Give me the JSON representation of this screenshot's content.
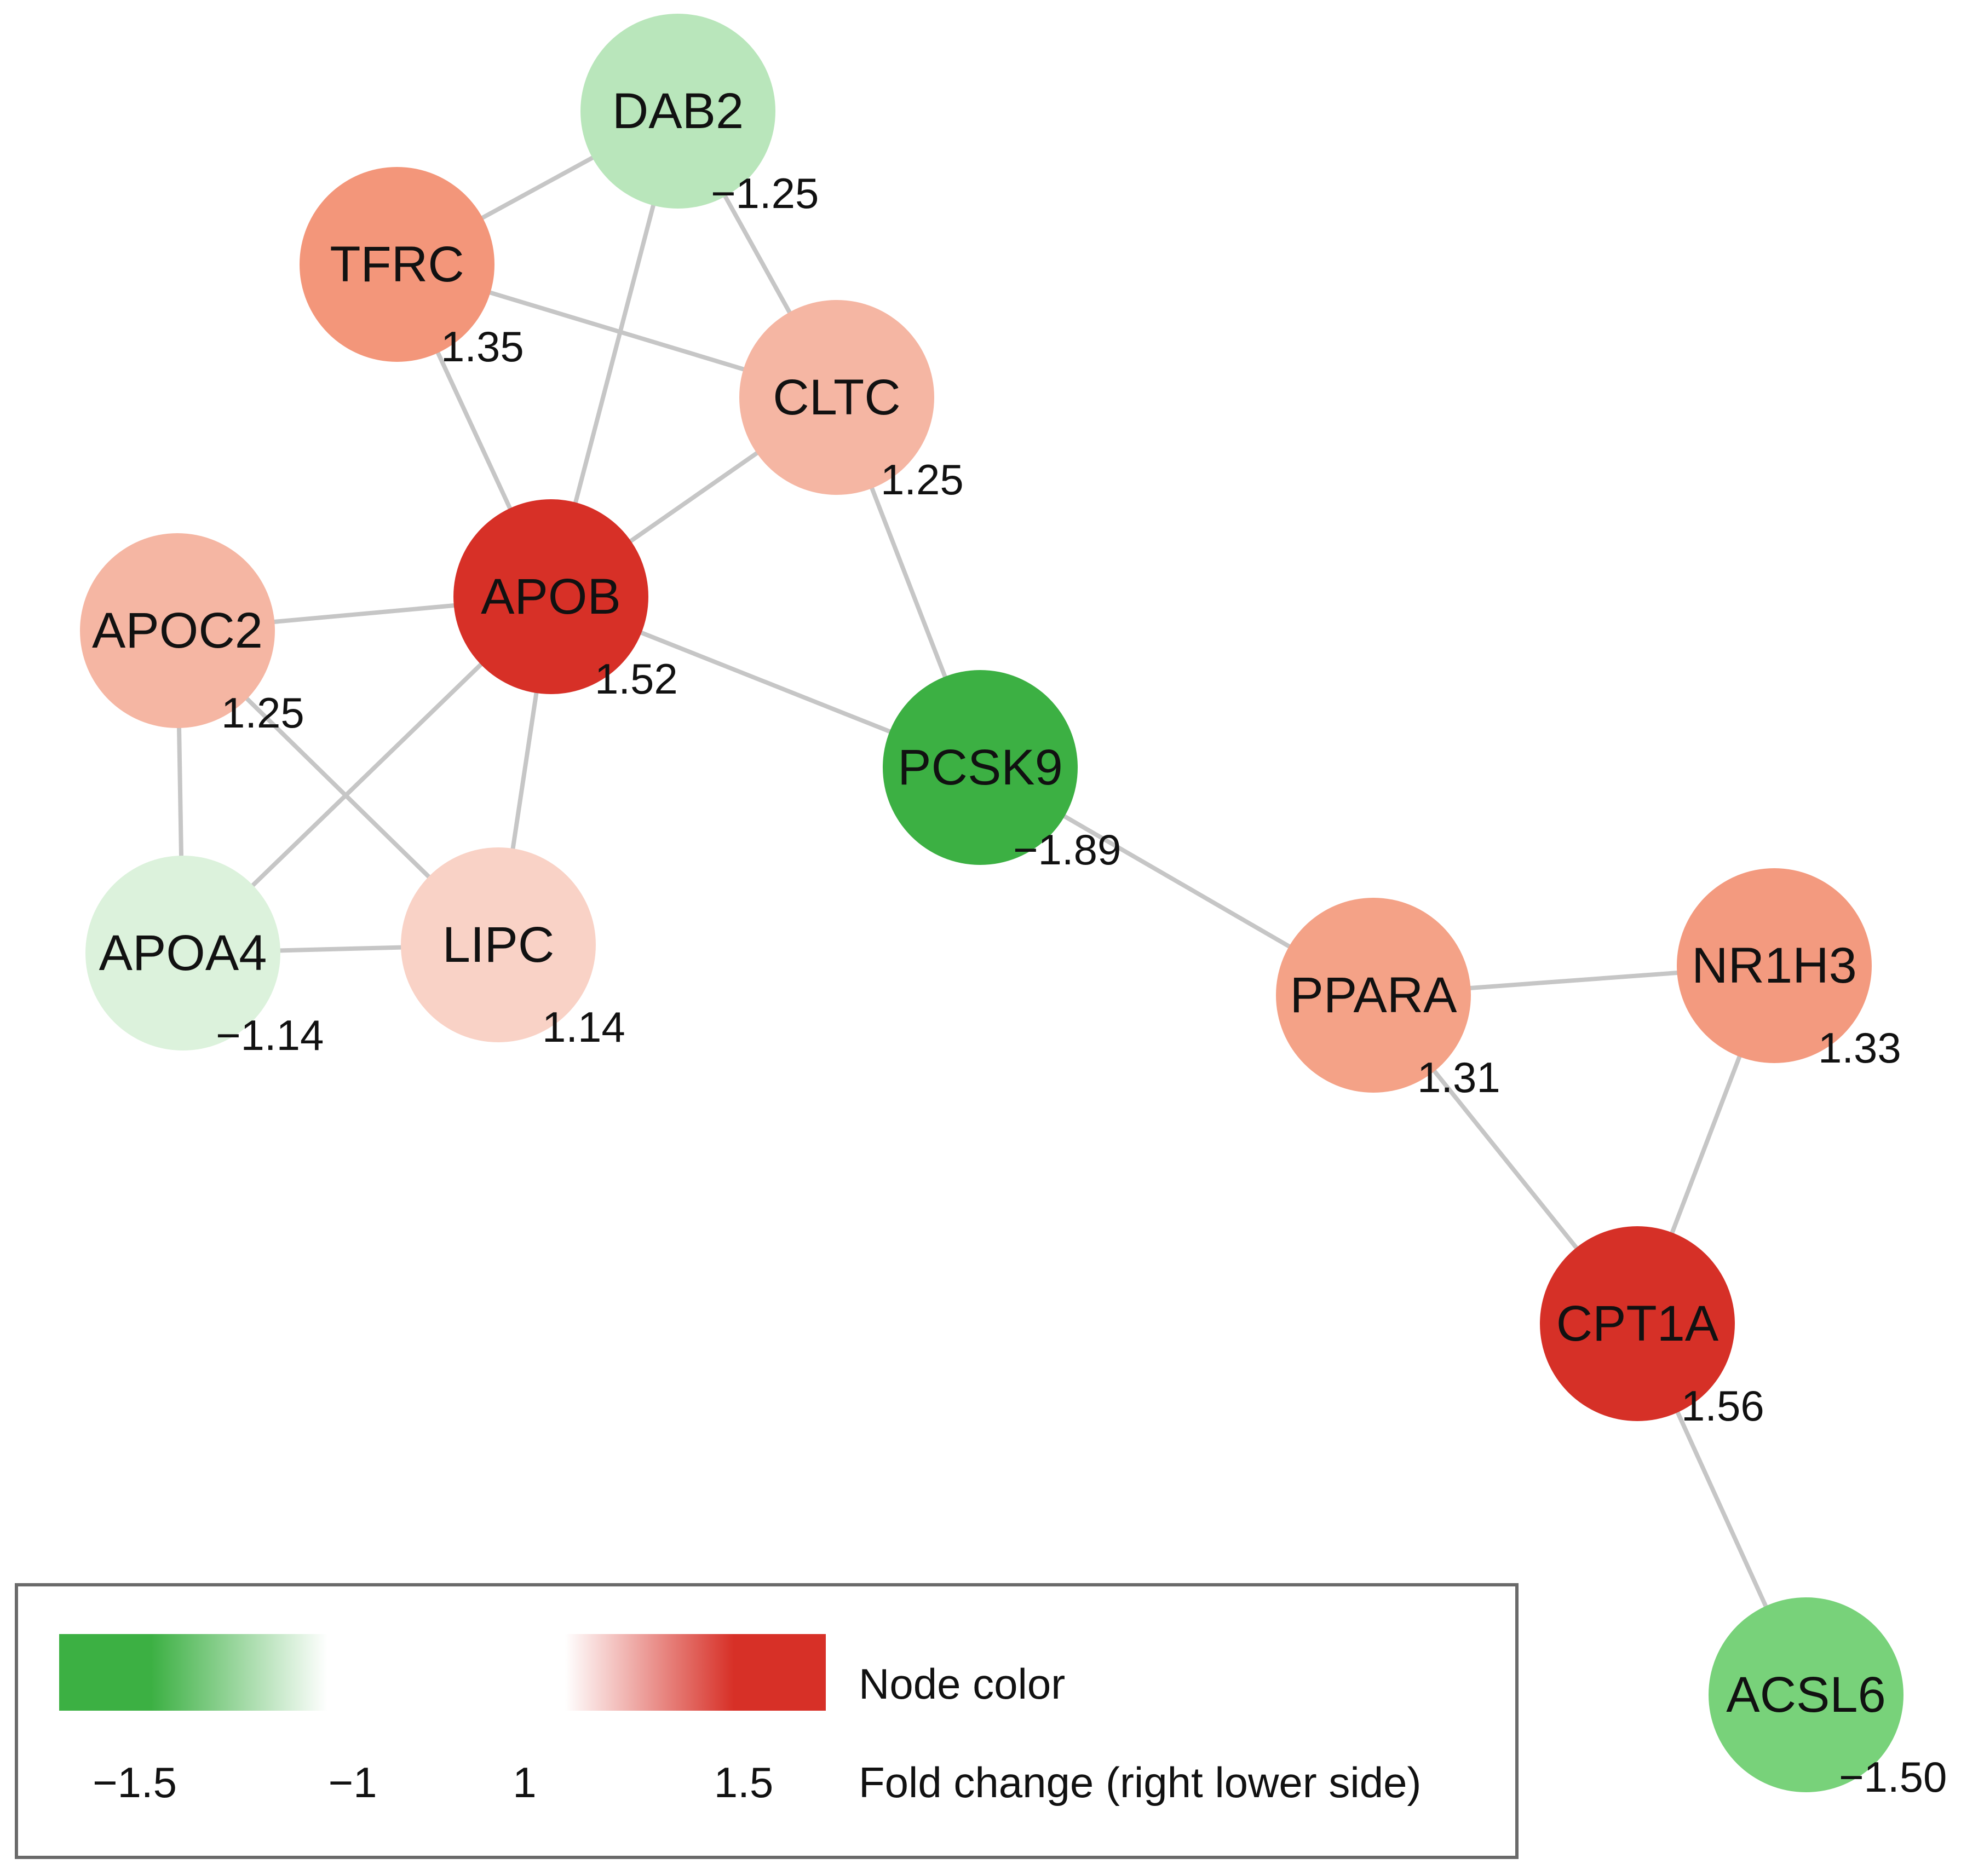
{
  "network": {
    "edge_color": "#c6c6c6",
    "nodes": [
      {
        "id": "DAB2",
        "label": "DAB2",
        "fold_change": "−1.25",
        "color": "#b9e6bb"
      },
      {
        "id": "TFRC",
        "label": "TFRC",
        "fold_change": "1.35",
        "color": "#f3967a"
      },
      {
        "id": "CLTC",
        "label": "CLTC",
        "fold_change": "1.25",
        "color": "#f5b6a3"
      },
      {
        "id": "APOB",
        "label": "APOB",
        "fold_change": "1.52",
        "color": "#d73027"
      },
      {
        "id": "APOC2",
        "label": "APOC2",
        "fold_change": "1.25",
        "color": "#f5b6a3"
      },
      {
        "id": "PCSK9",
        "label": "PCSK9",
        "fold_change": "−1.89",
        "color": "#3cb043"
      },
      {
        "id": "APOA4",
        "label": "APOA4",
        "fold_change": "−1.14",
        "color": "#dcf2dc"
      },
      {
        "id": "LIPC",
        "label": "LIPC",
        "fold_change": "1.14",
        "color": "#f9d2c6"
      },
      {
        "id": "PPARA",
        "label": "PPARA",
        "fold_change": "1.31",
        "color": "#f4a287"
      },
      {
        "id": "NR1H3",
        "label": "NR1H3",
        "fold_change": "1.33",
        "color": "#f39a7f"
      },
      {
        "id": "CPT1A",
        "label": "CPT1A",
        "fold_change": "1.56",
        "color": "#d63027"
      },
      {
        "id": "ACSL6",
        "label": "ACSL6",
        "fold_change": "−1.50",
        "color": "#78d27a"
      }
    ],
    "edges": [
      [
        "DAB2",
        "TFRC"
      ],
      [
        "DAB2",
        "APOB"
      ],
      [
        "DAB2",
        "CLTC"
      ],
      [
        "TFRC",
        "CLTC"
      ],
      [
        "TFRC",
        "APOB"
      ],
      [
        "CLTC",
        "APOB"
      ],
      [
        "CLTC",
        "PCSK9"
      ],
      [
        "APOB",
        "APOC2"
      ],
      [
        "APOB",
        "PCSK9"
      ],
      [
        "APOB",
        "APOA4"
      ],
      [
        "APOB",
        "LIPC"
      ],
      [
        "APOC2",
        "APOA4"
      ],
      [
        "APOC2",
        "LIPC"
      ],
      [
        "APOA4",
        "LIPC"
      ],
      [
        "PCSK9",
        "PPARA"
      ],
      [
        "PPARA",
        "NR1H3"
      ],
      [
        "PPARA",
        "CPT1A"
      ],
      [
        "NR1H3",
        "CPT1A"
      ],
      [
        "CPT1A",
        "ACSL6"
      ]
    ]
  },
  "legend": {
    "node_color_label": "Node color",
    "fold_change_label": "Fold change (right lower side)",
    "ticks": [
      "−1.5",
      "−1",
      "1",
      "1.5"
    ],
    "gradient_colors": [
      "#3cb043",
      "#3cb043",
      "#ffffff",
      "#ffffff",
      "#d73027",
      "#d73027"
    ],
    "border_color": "#6a6a6a"
  }
}
